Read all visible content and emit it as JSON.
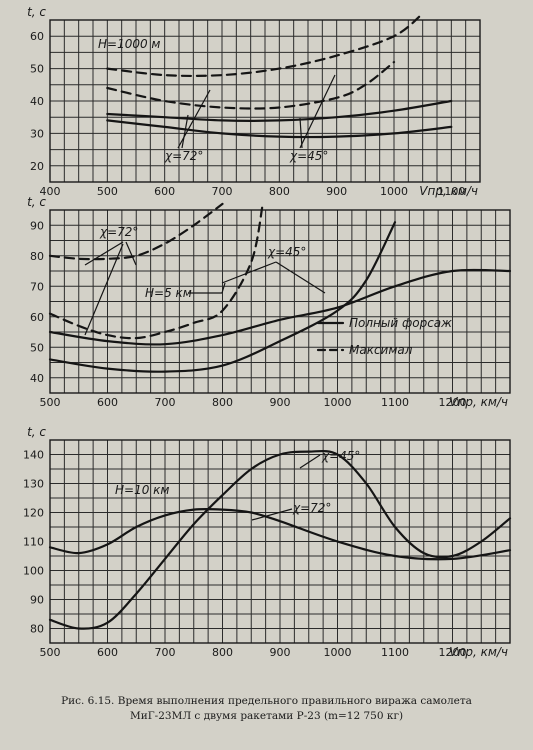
{
  "caption": {
    "line1": "Рис. 6.15. Время выполнения предельного правильного виража самолета",
    "line2": "МиГ-23МЛ с двумя ракетами Р-23 (m=12 750 кг)"
  },
  "chart_data": [
    {
      "type": "line",
      "ylabel": "t, c",
      "xlabel": "Vпр, км/ч",
      "xlim": [
        400,
        1150
      ],
      "ylim": [
        15,
        65
      ],
      "x_ticks": [
        400,
        500,
        600,
        700,
        800,
        900,
        1000,
        1100
      ],
      "y_ticks": [
        20,
        30,
        40,
        50,
        60
      ],
      "annotations": [
        "H=1000 м",
        "χ=72°",
        "χ=45°"
      ],
      "series": [
        {
          "style": "dashed",
          "x": [
            500,
            600,
            700,
            800,
            900,
            1000,
            1050
          ],
          "y": [
            50,
            48,
            48,
            50,
            54,
            60,
            67
          ]
        },
        {
          "style": "dashed",
          "x": [
            500,
            600,
            700,
            800,
            900,
            950,
            1000
          ],
          "y": [
            44,
            40,
            38,
            38,
            41,
            45,
            52
          ]
        },
        {
          "style": "solid",
          "x": [
            500,
            600,
            700,
            800,
            900,
            1000,
            1100
          ],
          "y": [
            36,
            35,
            34,
            34,
            35,
            37,
            40
          ]
        },
        {
          "style": "solid",
          "x": [
            500,
            600,
            700,
            800,
            900,
            1000,
            1100
          ],
          "y": [
            34,
            32,
            30,
            29,
            29,
            30,
            32
          ]
        }
      ]
    },
    {
      "type": "line",
      "ylabel": "t, c",
      "xlabel": "Vпр, км/ч",
      "xlim": [
        500,
        1300
      ],
      "ylim": [
        35,
        95
      ],
      "x_ticks": [
        500,
        600,
        700,
        800,
        900,
        1000,
        1100,
        1200
      ],
      "y_ticks": [
        40,
        50,
        60,
        70,
        80,
        90
      ],
      "annotations": [
        "χ=72°",
        "χ=45°",
        "H=5 км"
      ],
      "legend": [
        {
          "style": "solid",
          "label": "Полный форсаж"
        },
        {
          "style": "dashed",
          "label": "Максимал"
        }
      ],
      "series": [
        {
          "style": "dashed",
          "x": [
            500,
            550,
            600,
            650,
            700,
            750,
            800
          ],
          "y": [
            80,
            79,
            79,
            80,
            84,
            90,
            97
          ]
        },
        {
          "style": "dashed",
          "x": [
            500,
            550,
            600,
            650,
            700,
            750,
            800,
            850,
            870
          ],
          "y": [
            61,
            57,
            54,
            53,
            55,
            58,
            62,
            78,
            97
          ]
        },
        {
          "style": "solid",
          "x": [
            500,
            600,
            700,
            800,
            900,
            1000,
            1050,
            1100
          ],
          "y": [
            46,
            43,
            42,
            44,
            52,
            62,
            72,
            91
          ]
        },
        {
          "style": "solid",
          "x": [
            500,
            600,
            700,
            800,
            900,
            1000,
            1100,
            1200,
            1300
          ],
          "y": [
            55,
            52,
            51,
            54,
            59,
            63,
            70,
            75,
            75
          ]
        }
      ]
    },
    {
      "type": "line",
      "ylabel": "t, c",
      "xlabel": "Vпр, км/ч",
      "xlim": [
        500,
        1300
      ],
      "ylim": [
        75,
        145
      ],
      "x_ticks": [
        500,
        600,
        700,
        800,
        900,
        1000,
        1100,
        1200
      ],
      "y_ticks": [
        80,
        90,
        100,
        110,
        120,
        130,
        140
      ],
      "annotations": [
        "H=10 км",
        "χ=45°",
        "χ=72°"
      ],
      "series": [
        {
          "style": "solid",
          "x": [
            500,
            550,
            600,
            650,
            700,
            750,
            800,
            850,
            900,
            950,
            1000,
            1050,
            1100,
            1150,
            1200,
            1250,
            1300
          ],
          "y": [
            83,
            80,
            82,
            92,
            104,
            116,
            126,
            135,
            140,
            141,
            140,
            130,
            115,
            106,
            105,
            110,
            118
          ]
        },
        {
          "style": "solid",
          "x": [
            500,
            550,
            600,
            650,
            700,
            750,
            800,
            850,
            900,
            1000,
            1100,
            1200,
            1300
          ],
          "y": [
            108,
            106,
            109,
            115,
            119,
            121,
            121,
            120,
            117,
            110,
            105,
            104,
            107
          ]
        }
      ]
    }
  ]
}
